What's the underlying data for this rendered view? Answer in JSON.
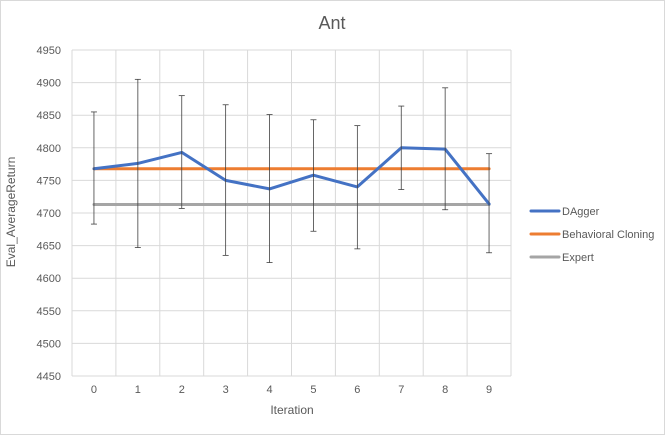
{
  "chart_data": {
    "type": "line",
    "title": "Ant",
    "xlabel": "Iteration",
    "ylabel": "Eval_AverageReturn",
    "categories": [
      "0",
      "1",
      "2",
      "3",
      "4",
      "5",
      "6",
      "7",
      "8",
      "9"
    ],
    "ylim": [
      4450,
      4950
    ],
    "yticks": [
      4450,
      4500,
      4550,
      4600,
      4650,
      4700,
      4750,
      4800,
      4850,
      4900,
      4950
    ],
    "grid": true,
    "legend_position": "right",
    "series": [
      {
        "name": "DAgger",
        "color": "#4472C4",
        "values": [
          4768,
          4776,
          4793,
          4750,
          4737,
          4758,
          4740,
          4800,
          4798,
          4714
        ],
        "error_low": [
          4683,
          4647,
          4707,
          4635,
          4624,
          4672,
          4645,
          4736,
          4705,
          4639
        ],
        "error_high": [
          4855,
          4905,
          4880,
          4866,
          4851,
          4843,
          4834,
          4864,
          4892,
          4791
        ]
      },
      {
        "name": "Behavioral Cloning",
        "color": "#ED7D31",
        "values": [
          4768,
          4768,
          4768,
          4768,
          4768,
          4768,
          4768,
          4768,
          4768,
          4768
        ]
      },
      {
        "name": "Expert",
        "color": "#A5A5A5",
        "values": [
          4713,
          4713,
          4713,
          4713,
          4713,
          4713,
          4713,
          4713,
          4713,
          4713
        ]
      }
    ]
  }
}
